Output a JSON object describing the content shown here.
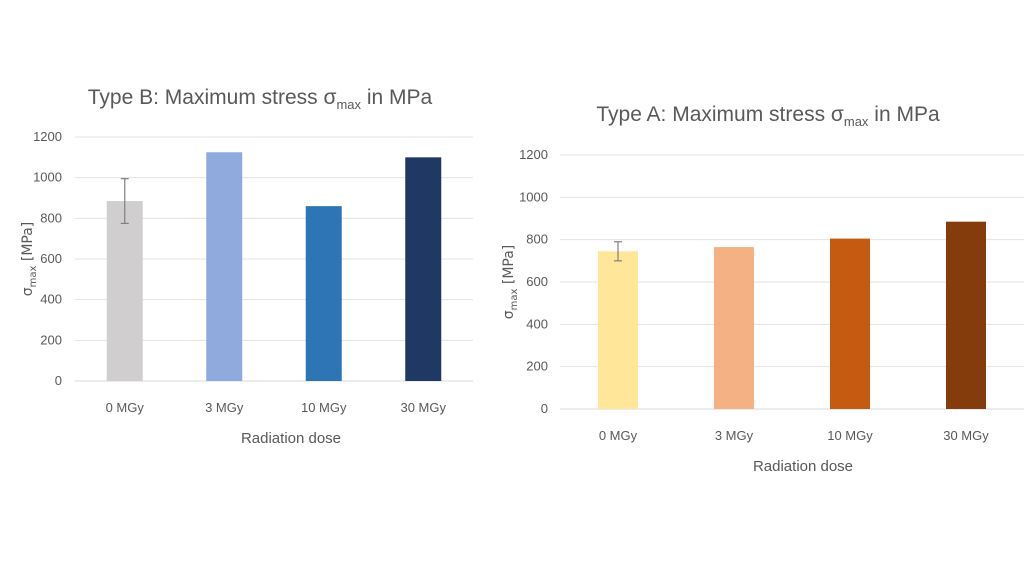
{
  "chart_data": [
    {
      "type": "bar",
      "title": {
        "base": "Type B: Maximum stress σ",
        "sub": "max",
        "rest": " in MPa"
      },
      "ylabel": {
        "base": "σ",
        "sub": "max",
        "rest": " [MPa]"
      },
      "xlabel": "Radiation dose",
      "categories": [
        "0 MGy",
        "3 MGy",
        "10 MGy",
        "30 MGy"
      ],
      "values": [
        885,
        1125,
        860,
        1100
      ],
      "error": [
        [
          0,
          110
        ],
        null,
        null,
        null
      ],
      "colors": [
        "#d0cece",
        "#8faadc",
        "#2e75b6",
        "#1f3864"
      ],
      "ylim": [
        0,
        1200
      ],
      "yticks": [
        0,
        200,
        400,
        600,
        800,
        1000,
        1200
      ],
      "grid": true
    },
    {
      "type": "bar",
      "title": {
        "base": "Type A: Maximum stress σ",
        "sub": "max",
        "rest": " in MPa"
      },
      "ylabel": {
        "base": "σ",
        "sub": "max",
        "rest": " [MPa]"
      },
      "xlabel": "Radiation dose",
      "categories": [
        "0 MGy",
        "3 MGy",
        "10 MGy",
        "30 MGy"
      ],
      "values": [
        745,
        765,
        805,
        885
      ],
      "error": [
        [
          0,
          45
        ],
        null,
        null,
        null
      ],
      "colors": [
        "#ffe699",
        "#f4b183",
        "#c55a11",
        "#843c0c"
      ],
      "ylim": [
        0,
        1200
      ],
      "yticks": [
        0,
        200,
        400,
        600,
        800,
        1000,
        1200
      ],
      "grid": true
    }
  ]
}
